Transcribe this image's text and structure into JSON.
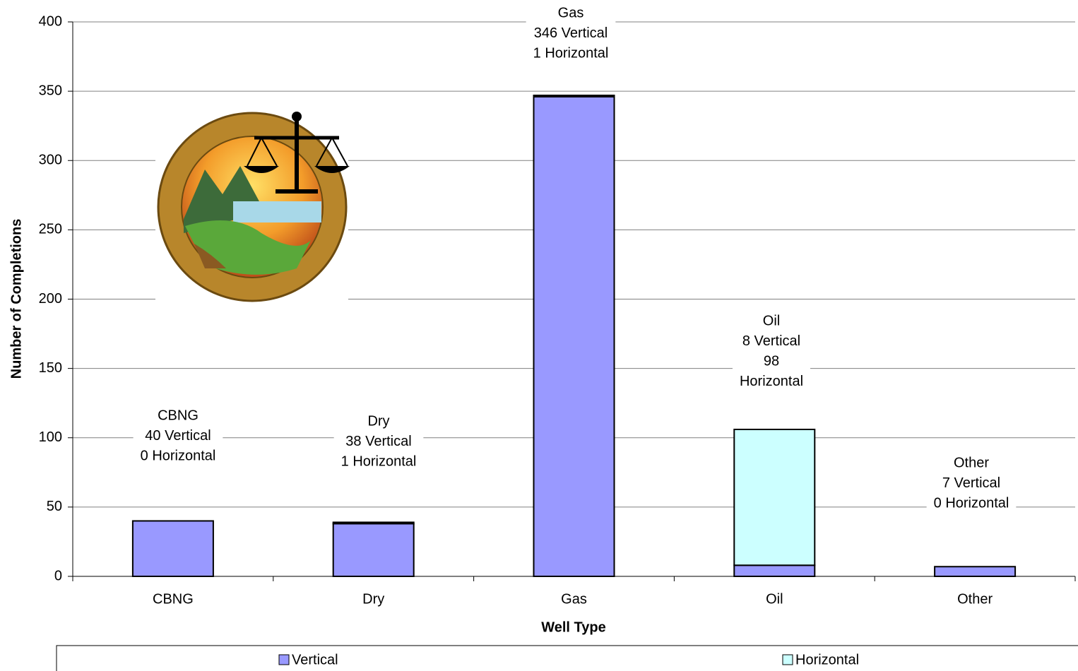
{
  "chart_data": {
    "type": "stacked-bar",
    "xlabel": "Well Type",
    "ylabel": "Number of Completions",
    "categories": [
      "CBNG",
      "Dry",
      "Gas",
      "Oil",
      "Other"
    ],
    "series": [
      {
        "name": "Vertical",
        "color": "#9999ff",
        "values": [
          40,
          38,
          346,
          8,
          7
        ]
      },
      {
        "name": "Horizontal",
        "color": "#ccffff",
        "values": [
          0,
          1,
          1,
          98,
          0
        ]
      }
    ],
    "annotations": [
      [
        "CBNG",
        "40 Vertical",
        "0 Horizontal"
      ],
      [
        "Dry",
        "38 Vertical",
        "1 Horizontal"
      ],
      [
        "Gas",
        "346 Vertical",
        "1 Horizontal"
      ],
      [
        "Oil",
        "8 Vertical",
        "98",
        "Horizontal"
      ],
      [
        "Other",
        "7 Vertical",
        "0 Horizontal"
      ]
    ],
    "ylim": [
      0,
      400
    ],
    "yticks": [
      0,
      50,
      100,
      150,
      200,
      250,
      300,
      350,
      400
    ],
    "grid": true,
    "legend": "bottom"
  }
}
